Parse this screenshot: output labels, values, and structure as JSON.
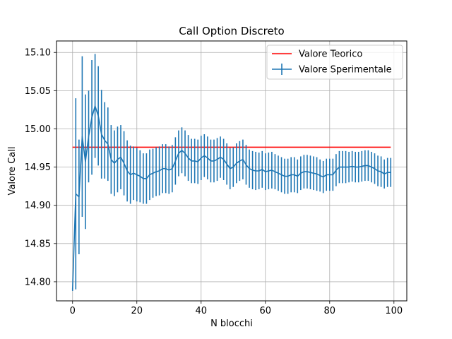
{
  "chart_data": {
    "type": "line",
    "title": "Call Option Discreto",
    "xlabel": "N blocchi",
    "ylabel": "Valore Call",
    "xlim": [
      -5,
      104
    ],
    "ylim": [
      14.775,
      15.115
    ],
    "xticks": [
      0,
      20,
      40,
      60,
      80,
      100
    ],
    "yticks": [
      14.8,
      14.85,
      14.9,
      14.95,
      15.0,
      15.05,
      15.1
    ],
    "grid": true,
    "legend": {
      "placement": "top-right"
    },
    "series": [
      {
        "name": "Valore Teorico",
        "kind": "line",
        "color": "#ff0000",
        "x": [
          0,
          99
        ],
        "y": [
          14.976,
          14.976
        ]
      },
      {
        "name": "Valore Sperimentale",
        "kind": "errorbar",
        "color": "#1f77b4",
        "x": [
          0,
          1,
          2,
          3,
          4,
          5,
          6,
          7,
          8,
          9,
          10,
          11,
          12,
          13,
          14,
          15,
          16,
          17,
          18,
          19,
          20,
          21,
          22,
          23,
          24,
          25,
          26,
          27,
          28,
          29,
          30,
          31,
          32,
          33,
          34,
          35,
          36,
          37,
          38,
          39,
          40,
          41,
          42,
          43,
          44,
          45,
          46,
          47,
          48,
          49,
          50,
          51,
          52,
          53,
          54,
          55,
          56,
          57,
          58,
          59,
          60,
          61,
          62,
          63,
          64,
          65,
          66,
          67,
          68,
          69,
          70,
          71,
          72,
          73,
          74,
          75,
          76,
          77,
          78,
          79,
          80,
          81,
          82,
          83,
          84,
          85,
          86,
          87,
          88,
          89,
          90,
          91,
          92,
          93,
          94,
          95,
          96,
          97,
          98,
          99
        ],
        "y": [
          14.79,
          14.915,
          14.911,
          14.99,
          14.957,
          14.99,
          15.015,
          15.03,
          15.017,
          14.993,
          14.985,
          14.98,
          14.96,
          14.955,
          14.96,
          14.963,
          14.955,
          14.945,
          14.94,
          14.942,
          14.94,
          14.938,
          14.935,
          14.935,
          14.94,
          14.942,
          14.944,
          14.945,
          14.948,
          14.948,
          14.946,
          14.948,
          14.958,
          14.968,
          14.972,
          14.968,
          14.962,
          14.958,
          14.958,
          14.957,
          14.962,
          14.965,
          14.962,
          14.958,
          14.958,
          14.96,
          14.963,
          14.96,
          14.954,
          14.948,
          14.95,
          14.955,
          14.958,
          14.96,
          14.953,
          14.948,
          14.946,
          14.945,
          14.945,
          14.947,
          14.944,
          14.945,
          14.946,
          14.944,
          14.942,
          14.94,
          14.938,
          14.938,
          14.94,
          14.94,
          14.938,
          14.942,
          14.944,
          14.944,
          14.943,
          14.942,
          14.941,
          14.939,
          14.937,
          14.94,
          14.94,
          14.94,
          14.946,
          14.95,
          14.95,
          14.95,
          14.95,
          14.951,
          14.95,
          14.95,
          14.951,
          14.952,
          14.952,
          14.95,
          14.948,
          14.945,
          14.944,
          14.941,
          14.943,
          14.943
        ],
        "yerr": [
          0.002,
          0.125,
          0.075,
          0.105,
          0.088,
          0.06,
          0.075,
          0.068,
          0.065,
          0.058,
          0.05,
          0.048,
          0.045,
          0.043,
          0.043,
          0.042,
          0.042,
          0.04,
          0.038,
          0.035,
          0.035,
          0.034,
          0.033,
          0.033,
          0.033,
          0.032,
          0.032,
          0.032,
          0.032,
          0.032,
          0.031,
          0.031,
          0.031,
          0.03,
          0.03,
          0.03,
          0.03,
          0.029,
          0.029,
          0.029,
          0.029,
          0.028,
          0.028,
          0.028,
          0.028,
          0.028,
          0.027,
          0.027,
          0.027,
          0.027,
          0.026,
          0.026,
          0.026,
          0.026,
          0.026,
          0.025,
          0.025,
          0.025,
          0.024,
          0.024,
          0.024,
          0.024,
          0.024,
          0.023,
          0.023,
          0.023,
          0.023,
          0.023,
          0.023,
          0.023,
          0.022,
          0.022,
          0.022,
          0.022,
          0.022,
          0.022,
          0.022,
          0.021,
          0.021,
          0.021,
          0.021,
          0.021,
          0.021,
          0.021,
          0.021,
          0.021,
          0.02,
          0.02,
          0.02,
          0.02,
          0.02,
          0.02,
          0.02,
          0.02,
          0.02,
          0.02,
          0.02,
          0.019,
          0.019,
          0.019
        ]
      }
    ]
  }
}
